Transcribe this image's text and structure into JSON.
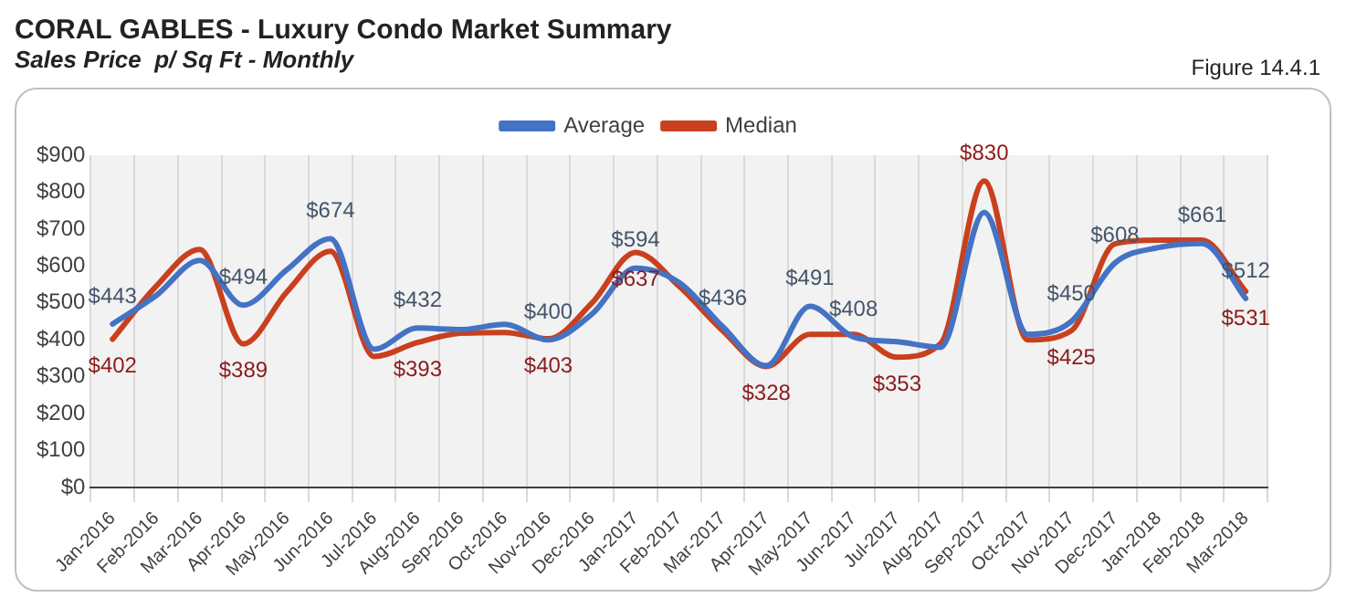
{
  "chart_data": {
    "type": "line",
    "title": "CORAL GABLES - Luxury Condo Market Summary",
    "subtitle": "Sales Price  p/ Sq Ft - Monthly",
    "annotations": [
      "Figure 14.4.1"
    ],
    "categories": [
      "Jan-2016",
      "Feb-2016",
      "Mar-2016",
      "Apr-2016",
      "May-2016",
      "Jun-2016",
      "Jul-2016",
      "Aug-2016",
      "Sep-2016",
      "Oct-2016",
      "Nov-2016",
      "Dec-2016",
      "Jan-2017",
      "Feb-2017",
      "Mar-2017",
      "Apr-2017",
      "May-2017",
      "Jun-2017",
      "Jul-2017",
      "Aug-2017",
      "Sep-2017",
      "Oct-2017",
      "Nov-2017",
      "Dec-2017",
      "Jan-2018",
      "Feb-2018",
      "Mar-2018"
    ],
    "series": [
      {
        "name": "Average",
        "color": "#4472c4",
        "values": [
          443,
          520,
          615,
          494,
          590,
          674,
          375,
          432,
          428,
          442,
          400,
          470,
          594,
          555,
          436,
          330,
          491,
          408,
          395,
          380,
          745,
          415,
          450,
          608,
          650,
          661,
          512
        ],
        "value_labels": [
          "$443",
          null,
          null,
          "$494",
          null,
          "$674",
          null,
          "$432",
          null,
          null,
          "$400",
          null,
          "$594",
          null,
          "$436",
          null,
          "$491",
          "$408",
          null,
          null,
          null,
          null,
          "$450",
          "$608",
          null,
          "$661",
          "$512"
        ]
      },
      {
        "name": "Median",
        "color": "#c9401e",
        "values": [
          402,
          545,
          645,
          389,
          530,
          640,
          355,
          393,
          418,
          420,
          403,
          500,
          637,
          545,
          425,
          328,
          415,
          415,
          353,
          390,
          830,
          400,
          425,
          660,
          670,
          670,
          531
        ],
        "value_labels": [
          "$402",
          null,
          null,
          "$389",
          null,
          null,
          null,
          "$393",
          null,
          null,
          "$403",
          null,
          "$637",
          null,
          null,
          "$328",
          null,
          null,
          "$353",
          null,
          "$830",
          null,
          "$425",
          null,
          null,
          null,
          "$531"
        ]
      }
    ],
    "ylim": [
      0,
      900
    ],
    "yticks": [
      {
        "value": 0,
        "label": "$0"
      },
      {
        "value": 100,
        "label": "$100"
      },
      {
        "value": 200,
        "label": "$200"
      },
      {
        "value": 300,
        "label": "$300"
      },
      {
        "value": 400,
        "label": "$400"
      },
      {
        "value": 500,
        "label": "$500"
      },
      {
        "value": 600,
        "label": "$600"
      },
      {
        "value": 700,
        "label": "$700"
      },
      {
        "value": 800,
        "label": "$800"
      },
      {
        "value": 900,
        "label": "$900"
      }
    ],
    "grid": "x",
    "legend": "top",
    "marker": "none",
    "line_style": "solid"
  }
}
